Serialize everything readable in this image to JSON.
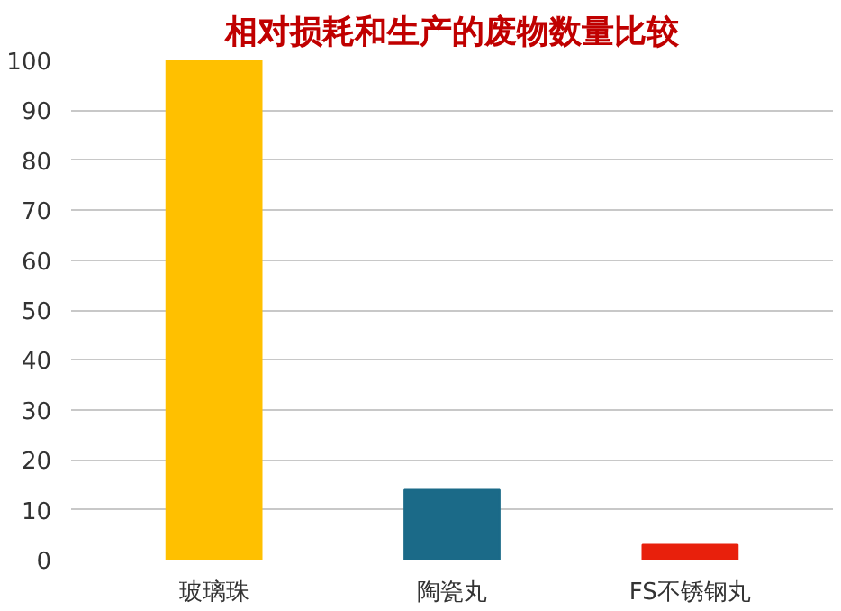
{
  "chart_data": {
    "type": "bar",
    "title": "相对损耗和生产的废物数量比较",
    "categories": [
      "玻璃珠",
      "陶瓷丸",
      "FS不锈钢丸"
    ],
    "values": [
      100,
      14,
      3
    ],
    "colors": [
      "#ffc000",
      "#1b6a88",
      "#e8200c"
    ],
    "ylim": [
      0,
      100
    ],
    "yticks": [
      0,
      10,
      20,
      30,
      40,
      50,
      60,
      70,
      80,
      90,
      100
    ],
    "grid": "y"
  }
}
